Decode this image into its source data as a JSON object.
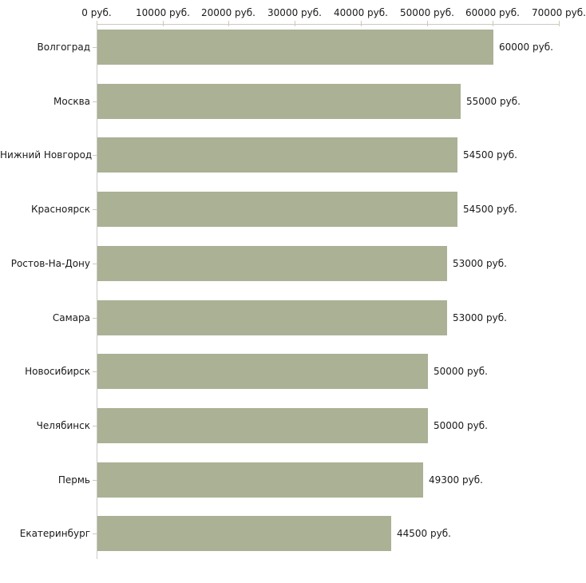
{
  "chart_data": {
    "type": "bar",
    "orientation": "horizontal",
    "categories": [
      "Волгоград",
      "Москва",
      "Нижний Новгород",
      "Красноярск",
      "Ростов-На-Дону",
      "Самара",
      "Новосибирск",
      "Челябинск",
      "Пермь",
      "Екатеринбург"
    ],
    "values": [
      60000,
      55000,
      54500,
      54500,
      53000,
      53000,
      50000,
      50000,
      49300,
      44500
    ],
    "value_labels": [
      "60000 руб.",
      "55000 руб.",
      "54500 руб.",
      "54500 руб.",
      "53000 руб.",
      "53000 руб.",
      "50000 руб.",
      "50000 руб.",
      "49300 руб.",
      "44500 руб."
    ],
    "x_ticks": [
      0,
      10000,
      20000,
      30000,
      40000,
      50000,
      60000,
      70000
    ],
    "x_tick_labels": [
      "0 руб.",
      "10000 руб.",
      "20000 руб.",
      "30000 руб.",
      "40000 руб.",
      "50000 руб.",
      "60000 руб.",
      "70000 руб."
    ],
    "xlim": [
      0,
      70000
    ],
    "unit": "руб.",
    "title": "",
    "xlabel": "",
    "ylabel": "",
    "grid": false,
    "legend": false,
    "colors": {
      "bar": "#aab195",
      "axis": "#c9c9c4",
      "tick": "#cdc9b6",
      "text": "#1a1a1a",
      "background": "#ffffff"
    }
  }
}
